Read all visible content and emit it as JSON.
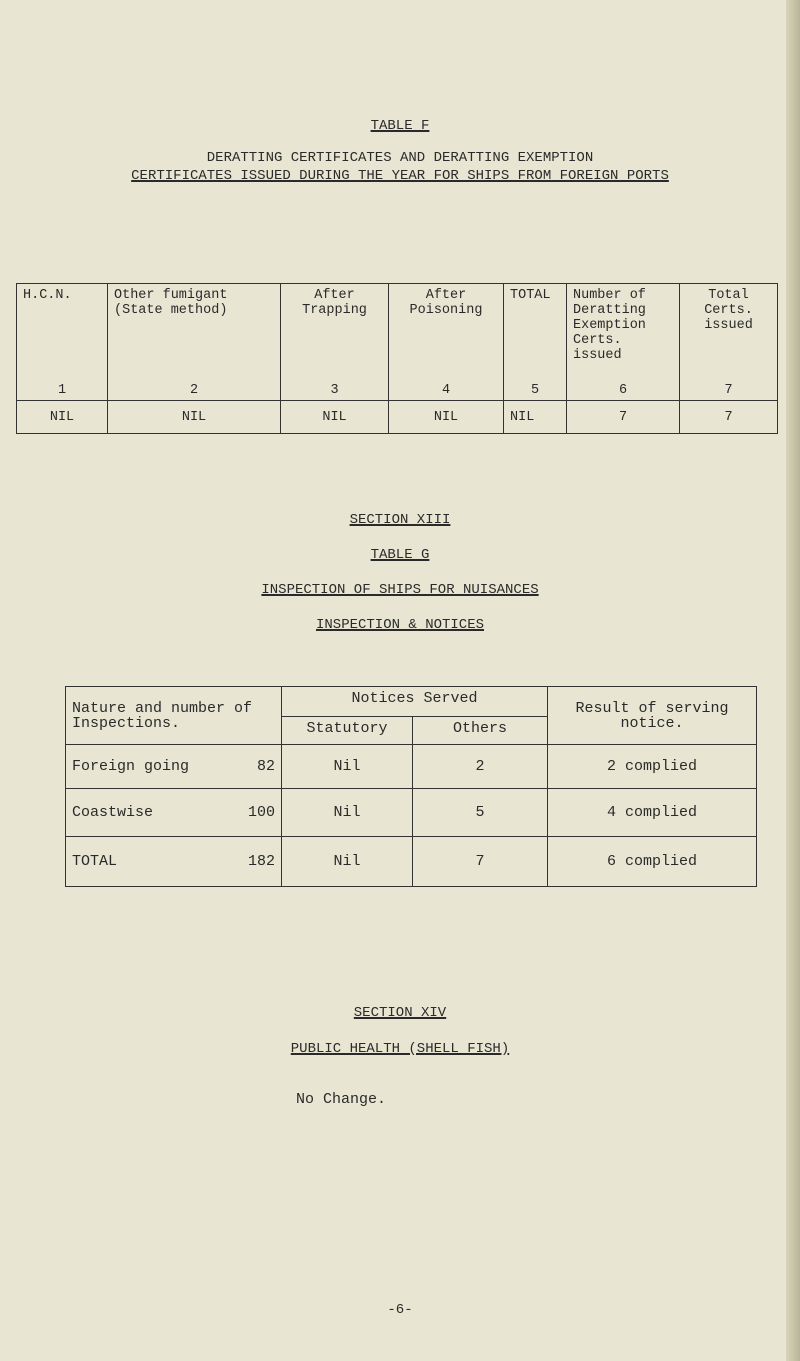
{
  "table_f": {
    "title": "TABLE F",
    "subtitle_line1": "DERATTING CERTIFICATES AND DERATTING EXEMPTION",
    "subtitle_line2": "CERTIFICATES ISSUED DURING THE YEAR FOR SHIPS FROM FOREIGN PORTS",
    "columns": [
      {
        "label": "H.C.N.",
        "num": "1"
      },
      {
        "label": "Other fumigant (State method)",
        "num": "2"
      },
      {
        "label": "After Trapping",
        "num": "3"
      },
      {
        "label": "After Poisoning",
        "num": "4"
      },
      {
        "label": "TOTAL",
        "num": "5"
      },
      {
        "label": "Number of Deratting Exemption Certs. issued",
        "num": "6"
      },
      {
        "label": "Total Certs. issued",
        "num": "7"
      }
    ],
    "row": [
      "NIL",
      "NIL",
      "NIL",
      "NIL",
      "NIL",
      "7",
      "7"
    ]
  },
  "section_xiii": "SECTION XIII",
  "table_g": {
    "title": "TABLE G",
    "subtitle": "INSPECTION OF SHIPS FOR NUISANCES",
    "subsubtitle": "INSPECTION & NOTICES",
    "headers": {
      "nature": "Nature and number of Inspections.",
      "notices": "Notices Served",
      "statutory": "Statutory",
      "others": "Others",
      "result": "Result of serving notice."
    },
    "rows": [
      {
        "nature": "Foreign going",
        "count": "82",
        "statutory": "Nil",
        "others": "2",
        "result": "2 complied"
      },
      {
        "nature": "Coastwise",
        "count": "100",
        "statutory": "Nil",
        "others": "5",
        "result": "4 complied"
      },
      {
        "nature": "TOTAL",
        "count": "182",
        "statutory": "Nil",
        "others": "7",
        "result": "6 complied"
      }
    ]
  },
  "section_xiv": "SECTION XIV",
  "public_health": "PUBLIC HEALTH (SHELL FISH)",
  "no_change": "No Change.",
  "page_number": "-6-"
}
